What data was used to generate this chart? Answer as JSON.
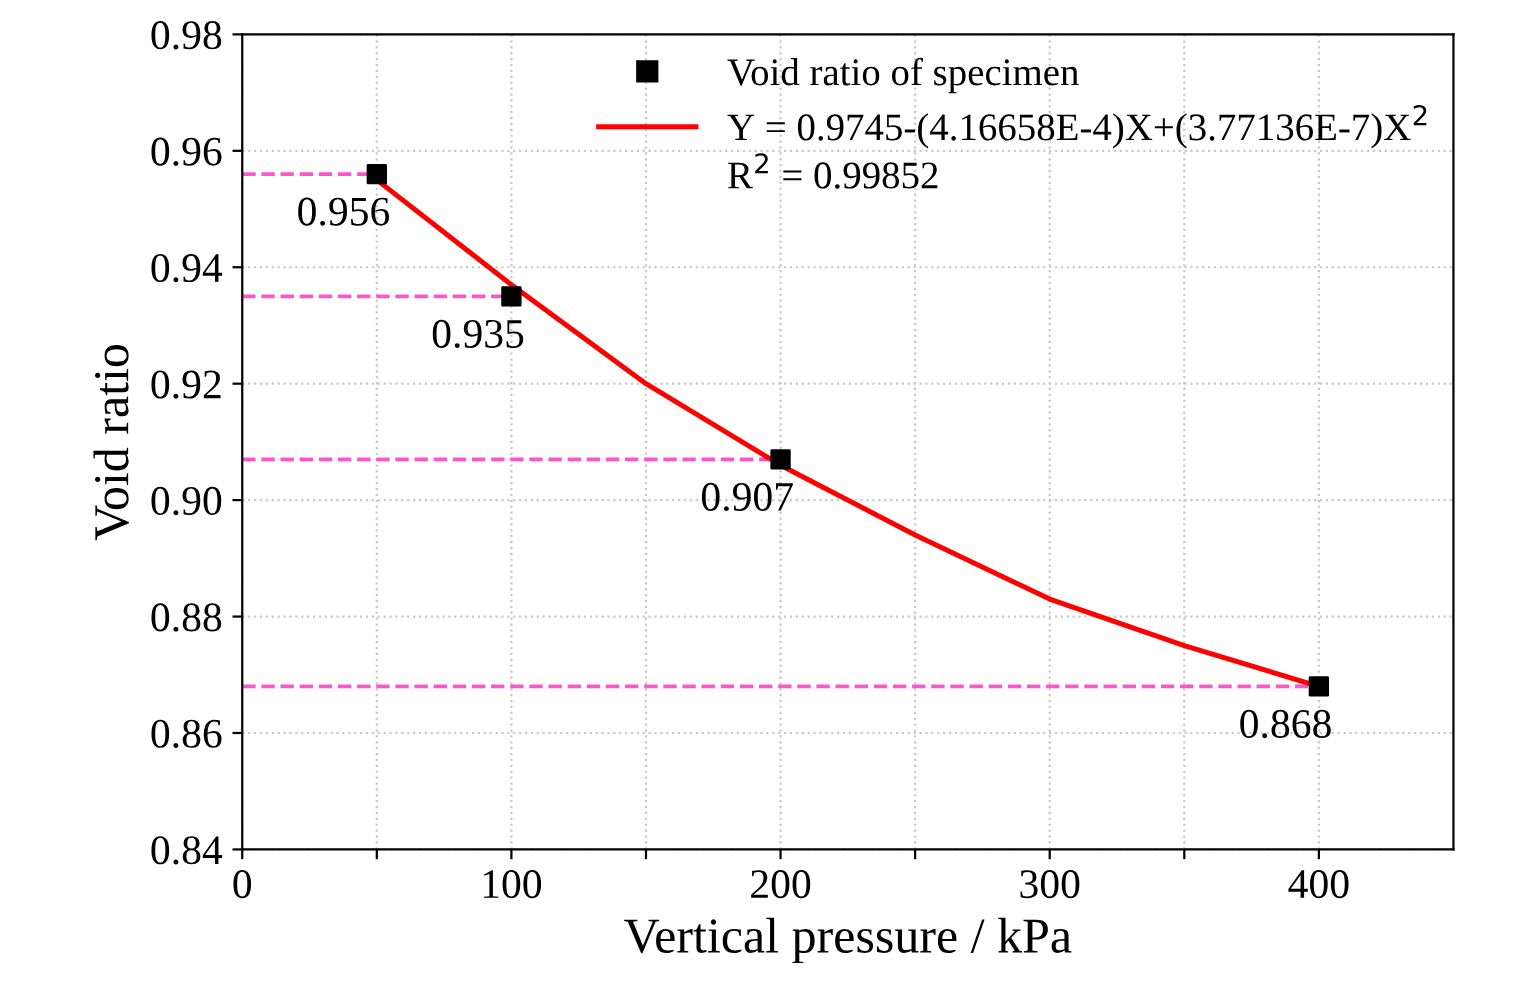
{
  "chart_data": {
    "type": "scatter",
    "xlabel": "Vertical pressure / kPa",
    "ylabel": "Void ratio",
    "xlim": [
      0,
      450
    ],
    "ylim": [
      0.84,
      0.98
    ],
    "xticks": [
      0,
      {
        "value": 50,
        "label": null
      },
      100,
      {
        "value": 150,
        "label": null
      },
      200,
      {
        "value": 250,
        "label": null
      },
      300,
      {
        "value": 350,
        "label": null
      },
      400
    ],
    "yticks": [
      0.84,
      0.86,
      0.88,
      {
        "value": 0.9,
        "label": "0.90"
      },
      0.92,
      0.94,
      0.96,
      0.98
    ],
    "grid": true,
    "legend": "top right",
    "series": [
      {
        "name": "Void ratio of specimen",
        "color": "#000000",
        "marker": "square",
        "data_labels": true,
        "x": [
          50,
          100,
          200,
          400
        ],
        "values": [
          0.956,
          0.935,
          0.907,
          0.868
        ]
      },
      {
        "name": "Y = 0.9745-(4.16658E-4)X+(3.77136E-7)X$^{2}$",
        "type": "line",
        "color": "#ff0000",
        "line_style": "solid",
        "x": [
          50,
          100,
          150,
          200,
          250,
          300,
          350,
          400
        ],
        "values": [
          0.955,
          0.937,
          0.92,
          0.906,
          0.894,
          0.883,
          0.875,
          0.868
        ]
      }
    ],
    "annotations": [
      "R$^{2}$ = 0.99852"
    ],
    "ref_lines": [
      {
        "axis": "y",
        "value": 0.956,
        "color": "#ff55cc",
        "line_style": "dashed"
      },
      {
        "axis": "y",
        "value": 0.935,
        "color": "#ff55cc",
        "line_style": "dashed"
      },
      {
        "axis": "y",
        "value": 0.907,
        "color": "#ff55cc",
        "line_style": "dashed"
      },
      {
        "axis": "y",
        "value": 0.868,
        "color": "#ff55cc",
        "line_style": "dashed"
      }
    ]
  }
}
